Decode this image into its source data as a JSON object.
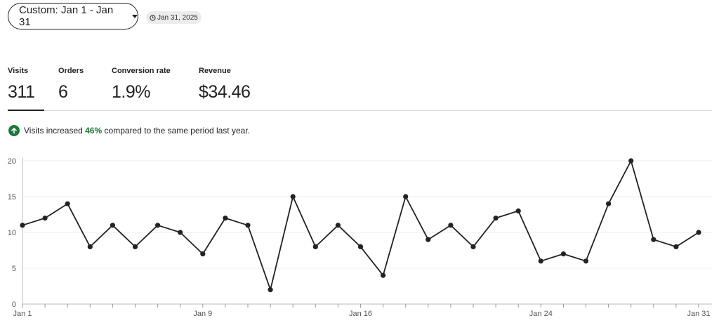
{
  "date_range": {
    "label": "Custom: Jan 1 - Jan 31"
  },
  "updated_badge": {
    "text": "Jan 31, 2025"
  },
  "stats": [
    {
      "label": "Visits",
      "value": "311"
    },
    {
      "label": "Orders",
      "value": "6"
    },
    {
      "label": "Conversion rate",
      "value": "1.9%"
    },
    {
      "label": "Revenue",
      "value": "$34.46"
    }
  ],
  "notice": {
    "prefix": "Visits increased",
    "percent": "46%",
    "suffix": "compared to the same period last year."
  },
  "colors": {
    "accent_green": "#1b7a3a",
    "line": "#222222",
    "grid": "#eeeeee"
  },
  "chart_data": {
    "type": "line",
    "title": "",
    "xlabel": "",
    "ylabel": "",
    "x": [
      "Jan 1",
      "Jan 2",
      "Jan 3",
      "Jan 4",
      "Jan 5",
      "Jan 6",
      "Jan 7",
      "Jan 8",
      "Jan 9",
      "Jan 10",
      "Jan 11",
      "Jan 12",
      "Jan 13",
      "Jan 14",
      "Jan 15",
      "Jan 16",
      "Jan 17",
      "Jan 18",
      "Jan 19",
      "Jan 20",
      "Jan 21",
      "Jan 22",
      "Jan 23",
      "Jan 24",
      "Jan 25",
      "Jan 26",
      "Jan 27",
      "Jan 28",
      "Jan 29",
      "Jan 30",
      "Jan 31"
    ],
    "series": [
      {
        "values": [
          11,
          12,
          14,
          8,
          11,
          8,
          11,
          10,
          7,
          12,
          11,
          2,
          15,
          8,
          11,
          8,
          4,
          15,
          9,
          11,
          8,
          12,
          13,
          6,
          7,
          6,
          14,
          20,
          9,
          8,
          10
        ]
      }
    ],
    "ylim": [
      0,
      20
    ],
    "y_ticks": [
      "0",
      "5",
      "10",
      "15",
      "20"
    ],
    "x_tick_labels": [
      {
        "index": 0,
        "label": "Jan 1"
      },
      {
        "index": 8,
        "label": "Jan 9"
      },
      {
        "index": 15,
        "label": "Jan 16"
      },
      {
        "index": 23,
        "label": "Jan 24"
      },
      {
        "index": 30,
        "label": "Jan 31"
      }
    ],
    "grid": true
  }
}
